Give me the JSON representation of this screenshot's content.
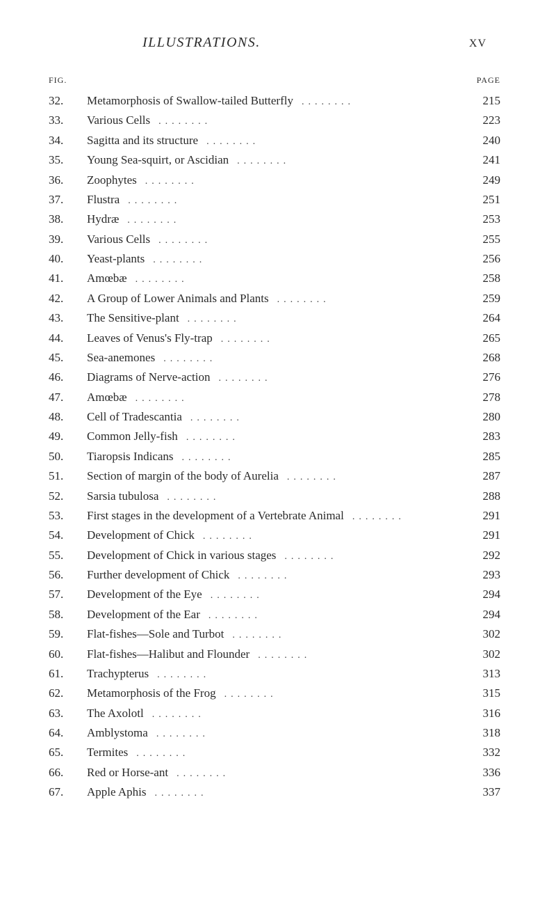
{
  "header": {
    "title": "ILLUSTRATIONS.",
    "roman": "XV"
  },
  "columnHeaders": {
    "fig": "FIG.",
    "page": "PAGE"
  },
  "entries": [
    {
      "fig": "32.",
      "title": "Metamorphosis of Swallow-tailed Butterfly",
      "page": "215"
    },
    {
      "fig": "33.",
      "title": "Various Cells",
      "page": "223"
    },
    {
      "fig": "34.",
      "title": "Sagitta and its structure",
      "page": "240"
    },
    {
      "fig": "35.",
      "title": "Young Sea-squirt, or Ascidian",
      "page": "241"
    },
    {
      "fig": "36.",
      "title": "Zoophytes",
      "page": "249"
    },
    {
      "fig": "37.",
      "title": "Flustra",
      "page": "251"
    },
    {
      "fig": "38.",
      "title": "Hydræ",
      "page": "253"
    },
    {
      "fig": "39.",
      "title": "Various Cells",
      "page": "255"
    },
    {
      "fig": "40.",
      "title": "Yeast-plants",
      "page": "256"
    },
    {
      "fig": "41.",
      "title": "Amœbæ",
      "page": "258"
    },
    {
      "fig": "42.",
      "title": "A Group of Lower Animals and Plants",
      "page": "259"
    },
    {
      "fig": "43.",
      "title": "The Sensitive-plant",
      "page": "264"
    },
    {
      "fig": "44.",
      "title": "Leaves of Venus's Fly-trap",
      "page": "265"
    },
    {
      "fig": "45.",
      "title": "Sea-anemones",
      "page": "268"
    },
    {
      "fig": "46.",
      "title": "Diagrams of Nerve-action",
      "page": "276"
    },
    {
      "fig": "47.",
      "title": "Amœbæ",
      "page": "278"
    },
    {
      "fig": "48.",
      "title": "Cell of Tradescantia",
      "page": "280"
    },
    {
      "fig": "49.",
      "title": "Common Jelly-fish",
      "page": "283"
    },
    {
      "fig": "50.",
      "title": "Tiaropsis Indicans",
      "page": "285"
    },
    {
      "fig": "51.",
      "title": "Section of margin of the body of Aurelia",
      "page": "287"
    },
    {
      "fig": "52.",
      "title": "Sarsia tubulosa",
      "page": "288"
    },
    {
      "fig": "53.",
      "title": "First stages in the development of a Vertebrate Animal",
      "page": "291"
    },
    {
      "fig": "54.",
      "title": "Development of Chick",
      "page": "291"
    },
    {
      "fig": "55.",
      "title": "Development of Chick in various stages",
      "page": "292"
    },
    {
      "fig": "56.",
      "title": "Further development of Chick",
      "page": "293"
    },
    {
      "fig": "57.",
      "title": "Development of the Eye",
      "page": "294"
    },
    {
      "fig": "58.",
      "title": "Development of the Ear",
      "page": "294"
    },
    {
      "fig": "59.",
      "title": "Flat-fishes—Sole and Turbot",
      "page": "302"
    },
    {
      "fig": "60.",
      "title": "Flat-fishes—Halibut and Flounder",
      "page": "302"
    },
    {
      "fig": "61.",
      "title": "Trachypterus",
      "page": "313"
    },
    {
      "fig": "62.",
      "title": "Metamorphosis of the Frog",
      "page": "315"
    },
    {
      "fig": "63.",
      "title": "The Axolotl",
      "page": "316"
    },
    {
      "fig": "64.",
      "title": "Amblystoma",
      "page": "318"
    },
    {
      "fig": "65.",
      "title": "Termites",
      "page": "332"
    },
    {
      "fig": "66.",
      "title": "Red or Horse-ant",
      "page": "336"
    },
    {
      "fig": "67.",
      "title": "Apple Aphis",
      "page": "337"
    }
  ],
  "style": {
    "dotsFill": "........"
  }
}
